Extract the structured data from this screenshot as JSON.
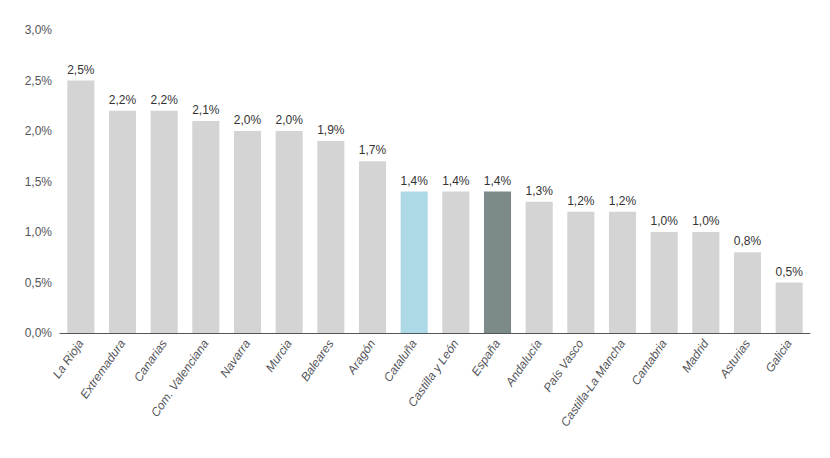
{
  "chart_data": {
    "type": "bar",
    "categories": [
      "La Rioja",
      "Extremadura",
      "Canarias",
      "Com. Valenciana",
      "Navarra",
      "Murcia",
      "Baleares",
      "Aragón",
      "Cataluña",
      "Castilla y León",
      "España",
      "Andalucía",
      "País Vasco",
      "Castilla-La Mancha",
      "Cantabria",
      "Madrid",
      "Asturias",
      "Galicia"
    ],
    "values": [
      2.5,
      2.2,
      2.2,
      2.1,
      2.0,
      2.0,
      1.9,
      1.7,
      1.4,
      1.4,
      1.4,
      1.3,
      1.2,
      1.2,
      1.0,
      1.0,
      0.8,
      0.5
    ],
    "value_labels": [
      "2,5%",
      "2,2%",
      "2,2%",
      "2,1%",
      "2,0%",
      "2,0%",
      "1,9%",
      "1,7%",
      "1,4%",
      "1,4%",
      "1,4%",
      "1,3%",
      "1,2%",
      "1,2%",
      "1,0%",
      "1,0%",
      "0,8%",
      "0,5%"
    ],
    "colors": [
      "#d4d4d4",
      "#d4d4d4",
      "#d4d4d4",
      "#d4d4d4",
      "#d4d4d4",
      "#d4d4d4",
      "#d4d4d4",
      "#d4d4d4",
      "#add8e6",
      "#d4d4d4",
      "#7d8a8a",
      "#d4d4d4",
      "#d4d4d4",
      "#d4d4d4",
      "#d4d4d4",
      "#d4d4d4",
      "#d4d4d4",
      "#d4d4d4"
    ],
    "ylim": [
      0,
      3.0
    ],
    "yticks": [
      {
        "value": 0.0,
        "label": "0,0%"
      },
      {
        "value": 0.5,
        "label": "0,5%"
      },
      {
        "value": 1.0,
        "label": "1,0%"
      },
      {
        "value": 1.5,
        "label": "1,5%"
      },
      {
        "value": 2.0,
        "label": "2,0%"
      },
      {
        "value": 2.5,
        "label": "2,5%"
      },
      {
        "value": 3.0,
        "label": "3,0%"
      }
    ],
    "grid": false,
    "data_labels": true
  }
}
